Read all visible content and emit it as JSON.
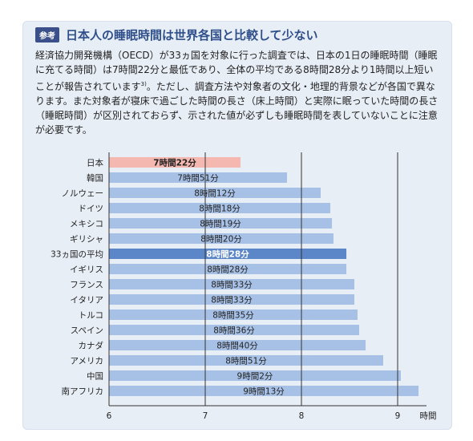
{
  "header": {
    "badge": "参考",
    "title": "日本人の睡眠時間は世界各国と比較して少ない"
  },
  "paragraph": {
    "text_main": "経済協力開発機構（OECD）が33ヵ国を対象に行った調査では、日本の1日の睡眠時間（睡眠に充てる時間）は7時間22分と最低であり、全体の平均である8時間28分より1時間以上短いことが報告されています",
    "sup": "3)",
    "text_rest": "。ただし、調査方法や対象者の文化・地理的背景などが各国で異なります。また対象者が寝床で過ごした時間の長さ（床上時間）と実際に眠っていた時間の長さ（睡眠時間）が区別されておらず、示された値が必ずしも睡眠時間を表していないことに注意が必要です。"
  },
  "colors": {
    "bar_default": "#a7c0e6",
    "bar_japan": "#f4b8b0",
    "bar_average": "#5b86c8",
    "grid": "#333333"
  },
  "chart_data": {
    "type": "bar",
    "orientation": "horizontal",
    "xlabel": "時間",
    "xlim": [
      6,
      9.3
    ],
    "xticks": [
      6,
      7,
      8,
      9
    ],
    "grid": true,
    "categories": [
      "日本",
      "韓国",
      "ノルウェー",
      "ドイツ",
      "メキシコ",
      "ギリシャ",
      "33ヵ国の平均",
      "イギリス",
      "フランス",
      "イタリア",
      "トルコ",
      "スペイン",
      "カナダ",
      "アメリカ",
      "中国",
      "南アフリカ"
    ],
    "values": [
      7.367,
      7.85,
      8.2,
      8.3,
      8.317,
      8.333,
      8.467,
      8.467,
      8.55,
      8.55,
      8.583,
      8.6,
      8.667,
      8.85,
      9.033,
      9.217
    ],
    "labels": [
      "7時間22分",
      "7時間51分",
      "8時間12分",
      "8時間18分",
      "8時間19分",
      "8時間20分",
      "8時間28分",
      "8時間28分",
      "8時間33分",
      "8時間33分",
      "8時間35分",
      "8時間36分",
      "8時間40分",
      "8時間51分",
      "9時間2分",
      "9時間13分"
    ],
    "highlight": {
      "日本": "japan",
      "33ヵ国の平均": "average"
    }
  }
}
